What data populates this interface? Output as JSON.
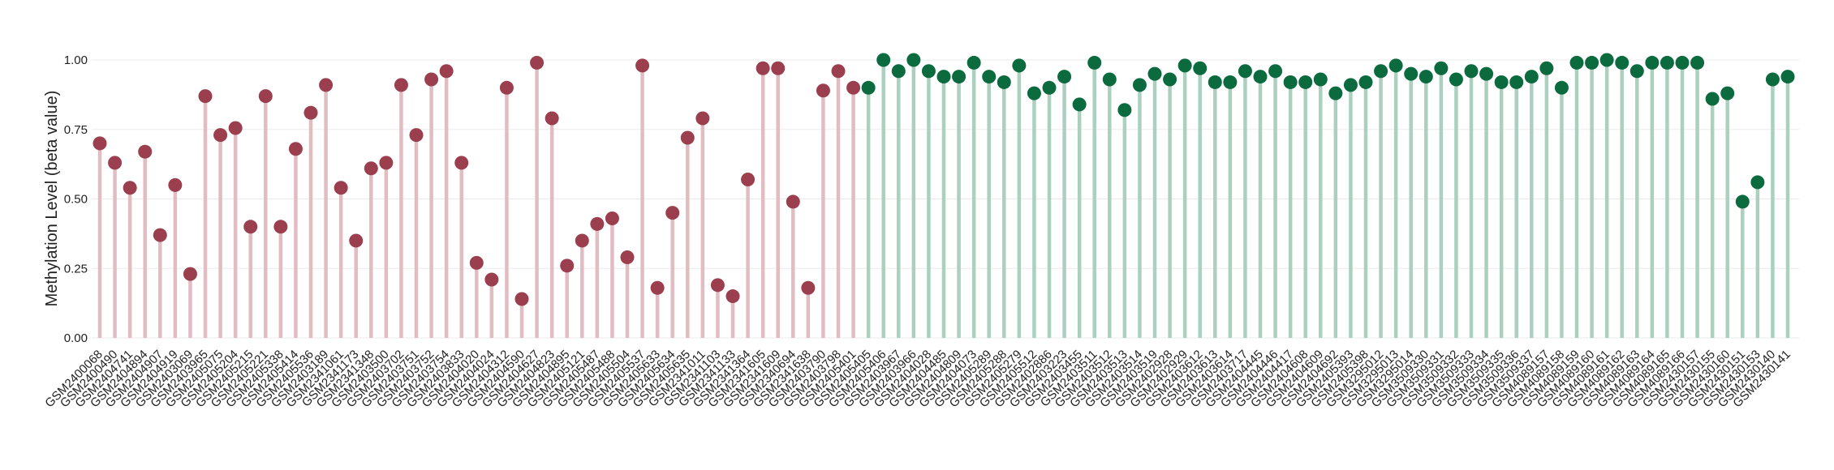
{
  "chart_data": {
    "type": "lollipop",
    "y_label": "Methylation Level (beta value)",
    "ylim": [
      0,
      1
    ],
    "yticks": [
      {
        "value": 0,
        "label": "0.00"
      },
      {
        "value": 0.25,
        "label": "0.25"
      },
      {
        "value": 0.5,
        "label": "0.50"
      },
      {
        "value": 0.75,
        "label": "0.75"
      },
      {
        "value": 1,
        "label": "1.00"
      }
    ],
    "grid": true,
    "categories": [
      "GSM2400068",
      "GSM2400490",
      "GSM2404741",
      "GSM2404894",
      "GSM2404907",
      "GSM2404919",
      "GSM2403069",
      "GSM2403965",
      "GSM2405075",
      "GSM2405204",
      "GSM2405215",
      "GSM2405221",
      "GSM2405338",
      "GSM2405414",
      "GSM2405536",
      "GSM2403189",
      "GSM2341061",
      "GSM2341173",
      "GSM2341348",
      "GSM2403500",
      "GSM2403702",
      "GSM2403751",
      "GSM2403752",
      "GSM2403754",
      "GSM2403833",
      "GSM2404020",
      "GSM2404024",
      "GSM2404312",
      "GSM2404590",
      "GSM2404627",
      "GSM2404823",
      "GSM2404895",
      "GSM2405121",
      "GSM2405487",
      "GSM2405488",
      "GSM2405504",
      "GSM2405537",
      "GSM2405633",
      "GSM2405634",
      "GSM2405635",
      "GSM2341011",
      "GSM2341103",
      "GSM2341133",
      "GSM2341364",
      "GSM2341605",
      "GSM2341609",
      "GSM2340694",
      "GSM2341638",
      "GSM2403790",
      "GSM2403798",
      "GSM2405401",
      "GSM2405405",
      "GSM2405406",
      "GSM2403967",
      "GSM2403966",
      "GSM2404028",
      "GSM2404485",
      "GSM2404809",
      "GSM2404073",
      "GSM2405289",
      "GSM2405288",
      "GSM2405279",
      "GSM2405512",
      "GSM2402886",
      "GSM2403223",
      "GSM2403455",
      "GSM2403511",
      "GSM2403512",
      "GSM2403513",
      "GSM2403514",
      "GSM2403519",
      "GSM2402928",
      "GSM2402929",
      "GSM2403612",
      "GSM2403613",
      "GSM2403614",
      "GSM2403717",
      "GSM2404445",
      "GSM2404446",
      "GSM2404417",
      "GSM2404608",
      "GSM2404609",
      "GSM2404692",
      "GSM2405393",
      "GSM2405398",
      "GSM3295012",
      "GSM3295013",
      "GSM3295014",
      "GSM3509330",
      "GSM3509331",
      "GSM3509332",
      "GSM3509333",
      "GSM3509334",
      "GSM3509335",
      "GSM3509336",
      "GSM3509337",
      "GSM4089157",
      "GSM4089158",
      "GSM4089159",
      "GSM4089160",
      "GSM4089161",
      "GSM4089162",
      "GSM4089163",
      "GSM4089164",
      "GSM4089165",
      "GSM4089166",
      "GSM2430157",
      "GSM2430155",
      "GSM2430160",
      "GSM2430151",
      "GSM2430153",
      "GSM2430140",
      "GSM2430141"
    ],
    "series": [
      {
        "color": "#9b3f4f",
        "stem_color": "#e2bcc3",
        "values": [
          0.7,
          0.63,
          0.54,
          0.67,
          0.37,
          0.55,
          0.23,
          0.87,
          0.73,
          0.755,
          0.4,
          0.87,
          0.4,
          0.68,
          0.81,
          0.91,
          0.54,
          0.35,
          0.61,
          0.63,
          0.91,
          0.73,
          0.93,
          0.96,
          0.63,
          0.27,
          0.21,
          0.9,
          0.14,
          0.99,
          0.79,
          0.26,
          0.35,
          0.41,
          0.43,
          0.29,
          0.98,
          0.18,
          0.45,
          0.72,
          0.79,
          0.19,
          0.15,
          0.57,
          0.97,
          0.97,
          0.49,
          0.18,
          0.89,
          0.96,
          0.9,
          null,
          null,
          null,
          null,
          null,
          null,
          null,
          null,
          null,
          null,
          null,
          null,
          null,
          null,
          null,
          null,
          null,
          null,
          null,
          null,
          null,
          null,
          null,
          null,
          null,
          null,
          null,
          null,
          null,
          null,
          null,
          null,
          null,
          null,
          null,
          null,
          null,
          null,
          null,
          null,
          null,
          null,
          null,
          null,
          null,
          null,
          null,
          null,
          null,
          null,
          null,
          null,
          null,
          null,
          null,
          null,
          null,
          null,
          null,
          null,
          null,
          null
        ]
      },
      {
        "color": "#0b6b3f",
        "stem_color": "#abd0bf",
        "values": [
          null,
          null,
          null,
          null,
          null,
          null,
          null,
          null,
          null,
          null,
          null,
          null,
          null,
          null,
          null,
          null,
          null,
          null,
          null,
          null,
          null,
          null,
          null,
          null,
          null,
          null,
          null,
          null,
          null,
          null,
          null,
          null,
          null,
          null,
          null,
          null,
          null,
          null,
          null,
          null,
          null,
          null,
          null,
          null,
          null,
          null,
          null,
          null,
          null,
          null,
          null,
          0.9,
          1.0,
          0.96,
          1.0,
          0.96,
          0.94,
          0.94,
          0.99,
          0.94,
          0.92,
          0.98,
          0.88,
          0.9,
          0.94,
          0.84,
          0.99,
          0.93,
          0.82,
          0.91,
          0.95,
          0.93,
          0.98,
          0.97,
          0.92,
          0.92,
          0.96,
          0.94,
          0.96,
          0.92,
          0.92,
          0.93,
          0.88,
          0.91,
          0.92,
          0.96,
          0.98,
          0.95,
          0.94,
          0.97,
          0.93,
          0.96,
          0.95,
          0.92,
          0.92,
          0.94,
          0.97,
          0.9,
          0.99,
          0.99,
          1.0,
          0.99,
          0.96,
          0.99,
          0.99,
          0.99,
          0.99,
          0.86,
          0.88,
          0.49,
          0.56,
          0.93,
          0.94
        ]
      }
    ]
  }
}
